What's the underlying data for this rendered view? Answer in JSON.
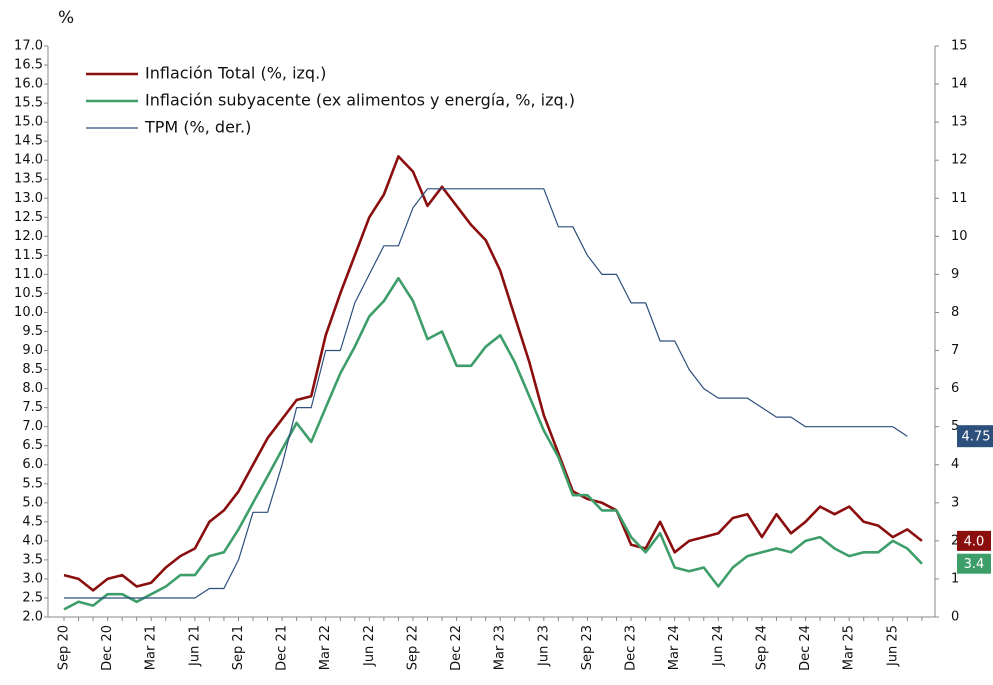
{
  "chart_data": {
    "type": "line",
    "y_label": "%",
    "categories": [
      "Sep 20",
      null,
      null,
      "Dec 20",
      null,
      null,
      "Mar 21",
      null,
      null,
      "Jun 21",
      null,
      null,
      "Sep 21",
      null,
      null,
      "Dec 21",
      null,
      null,
      "Mar 22",
      null,
      null,
      "Jun 22",
      null,
      null,
      "Sep 22",
      null,
      null,
      "Dec 22",
      null,
      null,
      "Mar 23",
      null,
      null,
      "Jun 23",
      null,
      null,
      "Sep 23",
      null,
      null,
      "Dec 23",
      null,
      null,
      "Mar 24",
      null,
      null,
      "Jun 24",
      null,
      null,
      "Sep 24",
      null,
      null,
      "Dec 24",
      null,
      null,
      "Mar 25",
      null,
      null,
      "Jun 25",
      null,
      null
    ],
    "series": [
      {
        "name": "Inflación Total (%, izq.)",
        "color": "#8b0e0e",
        "axis": "y",
        "values": [
          3.1,
          3.0,
          2.7,
          3.0,
          3.1,
          2.8,
          2.9,
          3.3,
          3.6,
          3.8,
          4.5,
          4.8,
          5.3,
          6.0,
          6.7,
          7.2,
          7.7,
          7.8,
          9.4,
          10.5,
          11.5,
          12.5,
          13.1,
          14.1,
          13.7,
          12.8,
          13.3,
          12.8,
          12.3,
          11.9,
          11.1,
          9.9,
          8.7,
          7.3,
          6.3,
          5.3,
          5.1,
          5.0,
          4.8,
          3.9,
          3.8,
          4.5,
          3.7,
          4.0,
          4.1,
          4.2,
          4.6,
          4.7,
          4.1,
          4.7,
          4.2,
          4.5,
          4.9,
          4.7,
          4.9,
          4.5,
          4.4,
          4.1,
          4.3,
          4.0
        ],
        "value_labels": [
          null,
          null,
          null,
          null,
          null,
          null,
          null,
          null,
          null,
          null,
          null,
          null,
          null,
          null,
          null,
          null,
          null,
          null,
          null,
          null,
          null,
          null,
          null,
          null,
          null,
          null,
          null,
          null,
          null,
          null,
          null,
          null,
          null,
          null,
          null,
          null,
          null,
          null,
          null,
          null,
          null,
          null,
          null,
          null,
          null,
          null,
          null,
          null,
          null,
          null,
          null,
          null,
          null,
          null,
          null,
          null,
          null,
          null,
          null,
          "4.0"
        ]
      },
      {
        "name": "Inflación subyacente (ex alimentos y energía, %, izq.)",
        "color": "#3e9e6a",
        "axis": "y",
        "values": [
          2.2,
          2.4,
          2.3,
          2.6,
          2.6,
          2.4,
          2.6,
          2.8,
          3.1,
          3.1,
          3.6,
          3.7,
          4.3,
          5.0,
          5.7,
          6.4,
          7.1,
          6.6,
          7.5,
          8.4,
          9.1,
          9.9,
          10.3,
          10.9,
          10.3,
          9.3,
          9.5,
          8.6,
          8.6,
          9.1,
          9.4,
          8.7,
          7.8,
          6.9,
          6.2,
          5.2,
          5.2,
          4.8,
          4.8,
          4.1,
          3.7,
          4.2,
          3.3,
          3.2,
          3.3,
          2.8,
          3.3,
          3.6,
          3.7,
          3.8,
          3.7,
          4.0,
          4.1,
          3.8,
          3.6,
          3.7,
          3.7,
          4.0,
          3.8,
          3.4
        ],
        "value_labels": [
          null,
          null,
          null,
          null,
          null,
          null,
          null,
          null,
          null,
          null,
          null,
          null,
          null,
          null,
          null,
          null,
          null,
          null,
          null,
          null,
          null,
          null,
          null,
          null,
          null,
          null,
          null,
          null,
          null,
          null,
          null,
          null,
          null,
          null,
          null,
          null,
          null,
          null,
          null,
          null,
          null,
          null,
          null,
          null,
          null,
          null,
          null,
          null,
          null,
          null,
          null,
          null,
          null,
          null,
          null,
          null,
          null,
          null,
          null,
          "3.4"
        ]
      },
      {
        "name": "TPM (%, der.)",
        "color": "#2c4f7c",
        "axis": "y2",
        "values": [
          0.5,
          0.5,
          0.5,
          0.5,
          0.5,
          0.5,
          0.5,
          0.5,
          0.5,
          0.5,
          0.75,
          0.75,
          1.5,
          2.75,
          2.75,
          4.0,
          5.5,
          5.5,
          7.0,
          7.0,
          8.25,
          9.0,
          9.75,
          9.75,
          10.75,
          11.25,
          11.25,
          11.25,
          11.25,
          11.25,
          11.25,
          11.25,
          11.25,
          11.25,
          10.25,
          10.25,
          9.5,
          9.0,
          9.0,
          8.25,
          8.25,
          7.25,
          7.25,
          6.5,
          6.0,
          5.75,
          5.75,
          5.75,
          5.5,
          5.25,
          5.25,
          5.0,
          5.0,
          5.0,
          5.0,
          5.0,
          5.0,
          5.0,
          4.75,
          null
        ]
      }
    ],
    "ylim": [
      2.0,
      17.0
    ],
    "yticks": [
      {
        "value": 2.0,
        "label": "2.0"
      },
      {
        "value": 2.5,
        "label": "2.5"
      },
      {
        "value": 3.0,
        "label": "3.0"
      },
      {
        "value": 3.5,
        "label": "3.5"
      },
      {
        "value": 4.0,
        "label": "4.0"
      },
      {
        "value": 4.5,
        "label": "4.5"
      },
      {
        "value": 5.0,
        "label": "5.0"
      },
      {
        "value": 5.5,
        "label": "5.5"
      },
      {
        "value": 6.0,
        "label": "6.0"
      },
      {
        "value": 6.5,
        "label": "6.5"
      },
      {
        "value": 7.0,
        "label": "7.0"
      },
      {
        "value": 7.5,
        "label": "7.5"
      },
      {
        "value": 8.0,
        "label": "8.0"
      },
      {
        "value": 8.5,
        "label": "8.5"
      },
      {
        "value": 9.0,
        "label": "9.0"
      },
      {
        "value": 9.5,
        "label": "9.5"
      },
      {
        "value": 10.0,
        "label": "10.0"
      },
      {
        "value": 10.5,
        "label": "10.5"
      },
      {
        "value": 11.0,
        "label": "11.0"
      },
      {
        "value": 11.5,
        "label": "11.5"
      },
      {
        "value": 12.0,
        "label": "12.0"
      },
      {
        "value": 12.5,
        "label": "12.5"
      },
      {
        "value": 13.0,
        "label": "13.0"
      },
      {
        "value": 13.5,
        "label": "13.5"
      },
      {
        "value": 14.0,
        "label": "14.0"
      },
      {
        "value": 14.5,
        "label": "14.5"
      },
      {
        "value": 15.0,
        "label": "15.0"
      },
      {
        "value": 15.5,
        "label": "15.5"
      },
      {
        "value": 16.0,
        "label": "16.0"
      },
      {
        "value": 16.5,
        "label": "16.5"
      },
      {
        "value": 17.0,
        "label": "17.0"
      }
    ],
    "y2lim": [
      0,
      15
    ],
    "y2ticks": [
      0,
      1,
      2,
      3,
      4,
      5,
      6,
      7,
      8,
      9,
      10,
      11,
      12,
      13,
      14,
      15
    ],
    "y2_value_labels": [
      {
        "series": 2,
        "index": 58,
        "label": "4.75"
      }
    ],
    "legend": "upper left",
    "grid": false
  }
}
